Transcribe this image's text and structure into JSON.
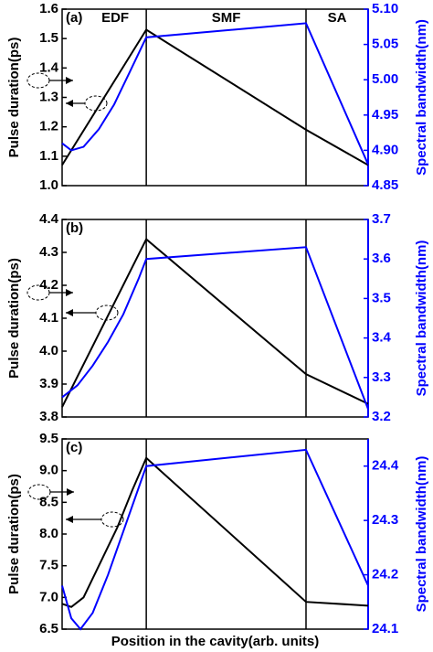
{
  "chart_data": [
    {
      "type": "line",
      "label": "(a)",
      "sections": [
        "EDF",
        "SMF",
        "SA"
      ],
      "vlines": [
        0.275,
        0.797
      ],
      "ylabel": "Pulse duration(ps)",
      "y2label": "Spectral bandwidth(nm)",
      "xlim": [
        0,
        1
      ],
      "ylim": [
        1.0,
        1.6
      ],
      "yticks": [
        {
          "value": 1,
          "label": "1.0"
        },
        1.1,
        1.2,
        1.3,
        1.4,
        1.5,
        1.6
      ],
      "y2lim": [
        4.85,
        5.1
      ],
      "y2ticks": [
        4.85,
        {
          "value": 4.9,
          "label": "4.90"
        },
        4.95,
        {
          "value": 5,
          "label": "5.00"
        },
        5.05,
        {
          "value": 5.1,
          "label": "5.10"
        }
      ],
      "series": [
        {
          "color": "#000000",
          "x": [
            0,
            0.275,
            0.797,
            1
          ],
          "values": [
            1.07,
            1.53,
            1.19,
            1.07
          ]
        },
        {
          "color": "#0000ff",
          "axis": "y2",
          "x": [
            0,
            0.03,
            0.07,
            0.12,
            0.17,
            0.22,
            0.275,
            0.797,
            1
          ],
          "values": [
            4.91,
            4.9,
            4.905,
            4.93,
            4.965,
            5.01,
            5.06,
            5.08,
            4.88
          ]
        }
      ]
    },
    {
      "type": "line",
      "label": "(b)",
      "vlines": [
        0.275,
        0.797
      ],
      "ylabel": "Pulse duration(ps)",
      "y2label": "Spectral bandwidth(nm)",
      "xlim": [
        0,
        1
      ],
      "ylim": [
        3.8,
        4.4
      ],
      "yticks": [
        3.8,
        3.9,
        {
          "value": 4,
          "label": "4.0"
        },
        4.1,
        4.2,
        4.3,
        4.4
      ],
      "y2lim": [
        3.2,
        3.7
      ],
      "y2ticks": [
        3.2,
        3.3,
        3.4,
        3.5,
        3.6,
        3.7
      ],
      "series": [
        {
          "color": "#000000",
          "x": [
            0,
            0.275,
            0.797,
            1
          ],
          "values": [
            3.83,
            4.34,
            3.93,
            3.84
          ]
        },
        {
          "color": "#0000ff",
          "axis": "y2",
          "x": [
            0,
            0.05,
            0.1,
            0.15,
            0.2,
            0.25,
            0.275,
            0.797,
            1
          ],
          "values": [
            3.25,
            3.28,
            3.33,
            3.39,
            3.46,
            3.55,
            3.6,
            3.63,
            3.22
          ]
        }
      ]
    },
    {
      "type": "line",
      "label": "(c)",
      "vlines": [
        0.275,
        0.797
      ],
      "xlabel": "Position in the cavity(arb. units)",
      "ylabel": "Pulse duration(ps)",
      "y2label": "Spectral bandwidth(nm)",
      "xlim": [
        0,
        1
      ],
      "ylim": [
        6.5,
        9.5
      ],
      "yticks": [
        6.5,
        {
          "value": 7,
          "label": "7.0"
        },
        7.5,
        {
          "value": 8,
          "label": "8.0"
        },
        8.5,
        {
          "value": 9,
          "label": "9.0"
        },
        9.5
      ],
      "y2lim": [
        24.1,
        24.45
      ],
      "y2ticks": [
        24.1,
        24.2,
        24.3,
        24.4
      ],
      "series": [
        {
          "color": "#000000",
          "x": [
            0,
            0.03,
            0.07,
            0.12,
            0.18,
            0.23,
            0.275,
            0.797,
            1
          ],
          "values": [
            6.9,
            6.85,
            7.0,
            7.5,
            8.1,
            8.7,
            9.2,
            6.93,
            6.87
          ]
        },
        {
          "color": "#0000ff",
          "axis": "y2",
          "x": [
            0,
            0.03,
            0.06,
            0.1,
            0.15,
            0.2,
            0.25,
            0.275,
            0.797,
            1
          ],
          "values": [
            24.18,
            24.12,
            24.1,
            24.13,
            24.2,
            24.28,
            24.36,
            24.4,
            24.43,
            24.18
          ]
        }
      ]
    }
  ]
}
